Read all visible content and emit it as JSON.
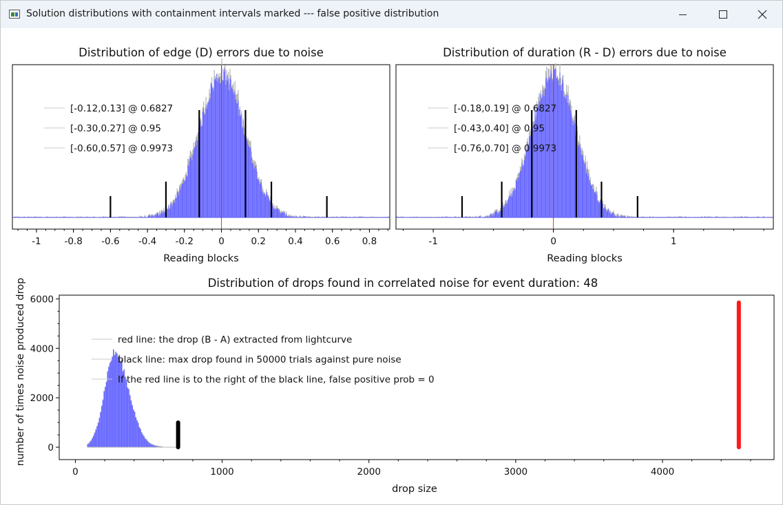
{
  "window": {
    "title": "Solution distributions with containment intervals marked --- false positive distribution",
    "icon": "app-window-icon",
    "controls": [
      "minimize-icon",
      "maximize-icon",
      "close-icon"
    ]
  },
  "colors": {
    "histogram_fill": "#6a6aff",
    "histogram_outline": "#b4b4b4",
    "zero_line": "#ff2020",
    "interval_marks": "#000000",
    "red_marker": "#ff1a1a",
    "black_marker": "#000000"
  },
  "chart_data": [
    {
      "type": "bar",
      "title": "Distribution of edge (D) errors due to noise",
      "xlabel": "Reading blocks",
      "ylabel": "",
      "xlim": [
        -1.13,
        0.91
      ],
      "xticks": [
        -1,
        -0.8,
        -0.6,
        -0.4,
        -0.2,
        0,
        0.2,
        0.4,
        0.6,
        0.8
      ],
      "xtick_labels": [
        "-1",
        "-0.8",
        "-0.6",
        "-0.4",
        "-0.2",
        "0",
        "0.2",
        "0.4",
        "0.6",
        "0.8"
      ],
      "distribution": {
        "shape": "gaussian",
        "center": 0.0,
        "sigma": 0.125
      },
      "zero_line_x": 0,
      "intervals": [
        {
          "label": "[-0.12,0.13] @ 0.6827",
          "low": -0.12,
          "high": 0.13,
          "level": 0.6827
        },
        {
          "label": "[-0.30,0.27] @ 0.95",
          "low": -0.3,
          "high": 0.27,
          "level": 0.95
        },
        {
          "label": "[-0.60,0.57] @ 0.9973",
          "low": -0.6,
          "high": 0.57,
          "level": 0.9973
        }
      ],
      "legend_position": "top-left",
      "grid": false
    },
    {
      "type": "bar",
      "title": "Distribution of duration (R - D) errors due to noise",
      "xlabel": "Reading blocks",
      "ylabel": "",
      "xlim": [
        -1.31,
        1.83
      ],
      "xticks": [
        -1,
        0,
        1
      ],
      "xtick_labels": [
        "-1",
        "0",
        "1"
      ],
      "distribution": {
        "shape": "gaussian",
        "center": 0.0,
        "sigma": 0.185
      },
      "zero_line_x": 0,
      "intervals": [
        {
          "label": "[-0.18,0.19] @ 0.6827",
          "low": -0.18,
          "high": 0.19,
          "level": 0.6827
        },
        {
          "label": "[-0.43,0.40] @ 0.95",
          "low": -0.43,
          "high": 0.4,
          "level": 0.95
        },
        {
          "label": "[-0.76,0.70] @ 0.9973",
          "low": -0.76,
          "high": 0.7,
          "level": 0.9973
        }
      ],
      "legend_position": "top-left",
      "grid": false
    },
    {
      "type": "bar",
      "title": "Distribution of drops found in correlated noise for event duration: 48",
      "xlabel": "drop size",
      "ylabel": "number of times noise produced drop",
      "xlim": [
        -110,
        4760
      ],
      "ylim": [
        -500,
        6150
      ],
      "xticks": [
        0,
        1000,
        2000,
        3000,
        4000
      ],
      "xtick_labels": [
        "0",
        "1000",
        "2000",
        "3000",
        "4000"
      ],
      "yticks": [
        0,
        2000,
        4000,
        6000
      ],
      "ytick_labels": [
        "0",
        "2000",
        "4000",
        "6000"
      ],
      "distribution": {
        "shape": "skewed",
        "peak_x": 265,
        "peak_y": 3850,
        "min_x": 80,
        "max_x": 700
      },
      "red_line": {
        "x": 4520,
        "y_top": 5850
      },
      "black_line": {
        "x": 700,
        "y_top": 1000
      },
      "legend": [
        "red line: the drop (B - A) extracted from lightcurve",
        "black line: max drop found in 50000 trials against pure noise",
        "If the red line is to the right of the black line, false positive prob = 0"
      ],
      "legend_position": "top-left",
      "grid": false
    }
  ]
}
